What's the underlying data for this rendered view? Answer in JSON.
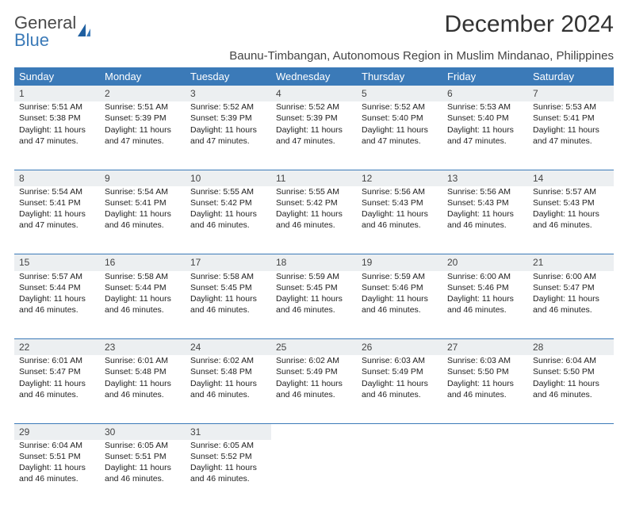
{
  "logo": {
    "text1": "General",
    "text2": "Blue"
  },
  "title": "December 2024",
  "location": "Baunu-Timbangan, Autonomous Region in Muslim Mindanao, Philippines",
  "colors": {
    "header_bg": "#3b7ab8",
    "header_text": "#ffffff",
    "daynum_bg": "#eceff1",
    "body_text": "#222222",
    "page_bg": "#ffffff"
  },
  "dayHeaders": [
    "Sunday",
    "Monday",
    "Tuesday",
    "Wednesday",
    "Thursday",
    "Friday",
    "Saturday"
  ],
  "weeks": [
    [
      {
        "n": "1",
        "sr": "5:51 AM",
        "ss": "5:38 PM",
        "dl": "11 hours and 47 minutes."
      },
      {
        "n": "2",
        "sr": "5:51 AM",
        "ss": "5:39 PM",
        "dl": "11 hours and 47 minutes."
      },
      {
        "n": "3",
        "sr": "5:52 AM",
        "ss": "5:39 PM",
        "dl": "11 hours and 47 minutes."
      },
      {
        "n": "4",
        "sr": "5:52 AM",
        "ss": "5:39 PM",
        "dl": "11 hours and 47 minutes."
      },
      {
        "n": "5",
        "sr": "5:52 AM",
        "ss": "5:40 PM",
        "dl": "11 hours and 47 minutes."
      },
      {
        "n": "6",
        "sr": "5:53 AM",
        "ss": "5:40 PM",
        "dl": "11 hours and 47 minutes."
      },
      {
        "n": "7",
        "sr": "5:53 AM",
        "ss": "5:41 PM",
        "dl": "11 hours and 47 minutes."
      }
    ],
    [
      {
        "n": "8",
        "sr": "5:54 AM",
        "ss": "5:41 PM",
        "dl": "11 hours and 47 minutes."
      },
      {
        "n": "9",
        "sr": "5:54 AM",
        "ss": "5:41 PM",
        "dl": "11 hours and 46 minutes."
      },
      {
        "n": "10",
        "sr": "5:55 AM",
        "ss": "5:42 PM",
        "dl": "11 hours and 46 minutes."
      },
      {
        "n": "11",
        "sr": "5:55 AM",
        "ss": "5:42 PM",
        "dl": "11 hours and 46 minutes."
      },
      {
        "n": "12",
        "sr": "5:56 AM",
        "ss": "5:43 PM",
        "dl": "11 hours and 46 minutes."
      },
      {
        "n": "13",
        "sr": "5:56 AM",
        "ss": "5:43 PM",
        "dl": "11 hours and 46 minutes."
      },
      {
        "n": "14",
        "sr": "5:57 AM",
        "ss": "5:43 PM",
        "dl": "11 hours and 46 minutes."
      }
    ],
    [
      {
        "n": "15",
        "sr": "5:57 AM",
        "ss": "5:44 PM",
        "dl": "11 hours and 46 minutes."
      },
      {
        "n": "16",
        "sr": "5:58 AM",
        "ss": "5:44 PM",
        "dl": "11 hours and 46 minutes."
      },
      {
        "n": "17",
        "sr": "5:58 AM",
        "ss": "5:45 PM",
        "dl": "11 hours and 46 minutes."
      },
      {
        "n": "18",
        "sr": "5:59 AM",
        "ss": "5:45 PM",
        "dl": "11 hours and 46 minutes."
      },
      {
        "n": "19",
        "sr": "5:59 AM",
        "ss": "5:46 PM",
        "dl": "11 hours and 46 minutes."
      },
      {
        "n": "20",
        "sr": "6:00 AM",
        "ss": "5:46 PM",
        "dl": "11 hours and 46 minutes."
      },
      {
        "n": "21",
        "sr": "6:00 AM",
        "ss": "5:47 PM",
        "dl": "11 hours and 46 minutes."
      }
    ],
    [
      {
        "n": "22",
        "sr": "6:01 AM",
        "ss": "5:47 PM",
        "dl": "11 hours and 46 minutes."
      },
      {
        "n": "23",
        "sr": "6:01 AM",
        "ss": "5:48 PM",
        "dl": "11 hours and 46 minutes."
      },
      {
        "n": "24",
        "sr": "6:02 AM",
        "ss": "5:48 PM",
        "dl": "11 hours and 46 minutes."
      },
      {
        "n": "25",
        "sr": "6:02 AM",
        "ss": "5:49 PM",
        "dl": "11 hours and 46 minutes."
      },
      {
        "n": "26",
        "sr": "6:03 AM",
        "ss": "5:49 PM",
        "dl": "11 hours and 46 minutes."
      },
      {
        "n": "27",
        "sr": "6:03 AM",
        "ss": "5:50 PM",
        "dl": "11 hours and 46 minutes."
      },
      {
        "n": "28",
        "sr": "6:04 AM",
        "ss": "5:50 PM",
        "dl": "11 hours and 46 minutes."
      }
    ],
    [
      {
        "n": "29",
        "sr": "6:04 AM",
        "ss": "5:51 PM",
        "dl": "11 hours and 46 minutes."
      },
      {
        "n": "30",
        "sr": "6:05 AM",
        "ss": "5:51 PM",
        "dl": "11 hours and 46 minutes."
      },
      {
        "n": "31",
        "sr": "6:05 AM",
        "ss": "5:52 PM",
        "dl": "11 hours and 46 minutes."
      },
      null,
      null,
      null,
      null
    ]
  ],
  "labels": {
    "sunrise": "Sunrise:",
    "sunset": "Sunset:",
    "daylight": "Daylight:"
  }
}
